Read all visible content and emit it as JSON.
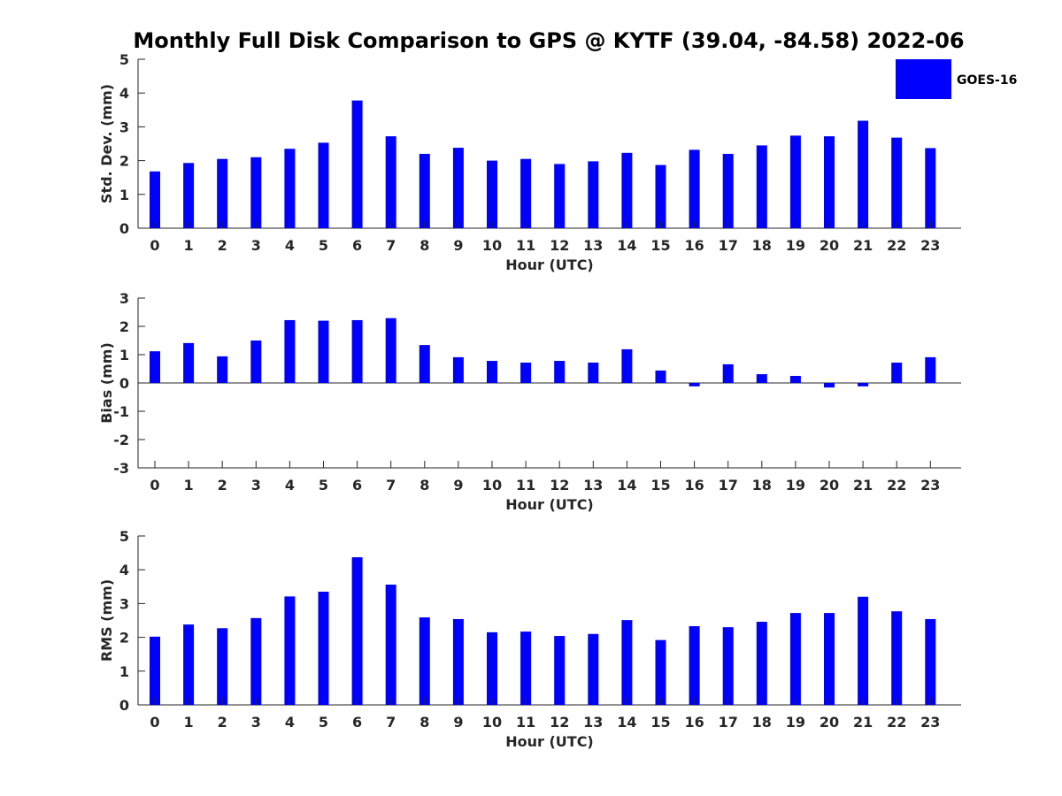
{
  "title": "Monthly Full Disk Comparison to GPS @ KYTF (39.04, -84.58) 2022-06",
  "legend": {
    "label": "GOES-16",
    "color": "#0000ff"
  },
  "chart_data": [
    {
      "type": "bar",
      "xlabel": "Hour (UTC)",
      "ylabel": "Std. Dev. (mm)",
      "ylim": [
        0,
        5
      ],
      "yticks": [
        "0",
        "1",
        "2",
        "3",
        "4",
        "5"
      ],
      "categories": [
        "0",
        "1",
        "2",
        "3",
        "4",
        "5",
        "6",
        "7",
        "8",
        "9",
        "10",
        "11",
        "12",
        "13",
        "14",
        "15",
        "16",
        "17",
        "18",
        "19",
        "20",
        "21",
        "22",
        "23"
      ],
      "series": [
        {
          "name": "GOES-16",
          "color": "#0000ff",
          "values": [
            1.68,
            1.93,
            2.05,
            2.1,
            2.35,
            2.53,
            3.78,
            2.72,
            2.2,
            2.38,
            2.0,
            2.05,
            1.9,
            1.98,
            2.23,
            1.87,
            2.32,
            2.2,
            2.45,
            2.74,
            2.72,
            3.18,
            2.68,
            2.37
          ]
        }
      ],
      "legend": "top-right",
      "grid": false
    },
    {
      "type": "bar",
      "xlabel": "Hour (UTC)",
      "ylabel": "Bias (mm)",
      "ylim": [
        -3,
        3
      ],
      "yticks": [
        "-3",
        "-2",
        "-1",
        "0",
        "1",
        "2",
        "3"
      ],
      "categories": [
        "0",
        "1",
        "2",
        "3",
        "4",
        "5",
        "6",
        "7",
        "8",
        "9",
        "10",
        "11",
        "12",
        "13",
        "14",
        "15",
        "16",
        "17",
        "18",
        "19",
        "20",
        "21",
        "22",
        "23"
      ],
      "series": [
        {
          "name": "GOES-16",
          "color": "#0000ff",
          "values": [
            1.12,
            1.41,
            0.94,
            1.5,
            2.22,
            2.2,
            2.22,
            2.29,
            1.34,
            0.91,
            0.78,
            0.72,
            0.78,
            0.72,
            1.19,
            0.44,
            -0.12,
            0.66,
            0.31,
            0.25,
            -0.16,
            -0.12,
            0.72,
            0.91
          ]
        }
      ],
      "grid": false
    },
    {
      "type": "bar",
      "xlabel": "Hour (UTC)",
      "ylabel": "RMS (mm)",
      "ylim": [
        0,
        5
      ],
      "yticks": [
        "0",
        "1",
        "2",
        "3",
        "4",
        "5"
      ],
      "categories": [
        "0",
        "1",
        "2",
        "3",
        "4",
        "5",
        "6",
        "7",
        "8",
        "9",
        "10",
        "11",
        "12",
        "13",
        "14",
        "15",
        "16",
        "17",
        "18",
        "19",
        "20",
        "21",
        "22",
        "23"
      ],
      "series": [
        {
          "name": "GOES-16",
          "color": "#0000ff",
          "values": [
            2.02,
            2.38,
            2.27,
            2.57,
            3.21,
            3.35,
            4.37,
            3.56,
            2.59,
            2.54,
            2.15,
            2.17,
            2.04,
            2.1,
            2.51,
            1.92,
            2.33,
            2.3,
            2.46,
            2.72,
            2.72,
            3.2,
            2.77,
            2.54
          ]
        }
      ],
      "grid": false
    }
  ]
}
